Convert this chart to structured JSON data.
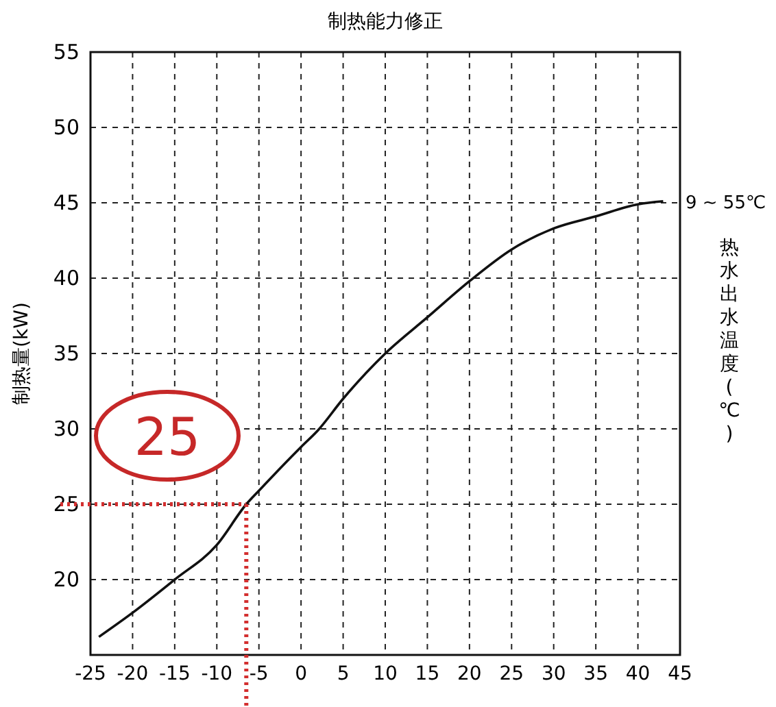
{
  "chart_data": {
    "type": "line",
    "title": "制热能力修正",
    "ylabel": "制热量(kW)",
    "y2label": "热水出水温度(℃)",
    "xlim": [
      -25,
      45
    ],
    "xticks": [
      -25,
      -20,
      -15,
      -10,
      -5,
      0,
      5,
      10,
      15,
      20,
      25,
      30,
      35,
      40,
      45
    ],
    "ylim": [
      15,
      55
    ],
    "yticks": [
      20,
      25,
      30,
      35,
      40,
      45,
      50,
      55
    ],
    "grid": true,
    "line_style": "solid",
    "marker": "none",
    "series": [
      {
        "name": "9 ~ 55℃",
        "color": "#111111",
        "x": [
          -24,
          -20,
          -15,
          -10,
          -6.5,
          -5,
          0,
          2,
          5,
          10,
          15,
          20,
          25,
          30,
          35,
          40,
          43
        ],
        "values": [
          16.2,
          17.8,
          20,
          22.3,
          25,
          25.9,
          28.8,
          29.9,
          32,
          35,
          37.4,
          39.8,
          41.9,
          43.3,
          44.1,
          44.9,
          45.1
        ]
      }
    ],
    "ref_lines": [
      {
        "axis": "y",
        "value": 25,
        "color": "#d32f2f",
        "line_style": "dotted"
      },
      {
        "axis": "x",
        "value": -6.5,
        "color": "#d32f2f",
        "line_style": "dotted"
      }
    ],
    "annotations": [
      "25"
    ]
  }
}
